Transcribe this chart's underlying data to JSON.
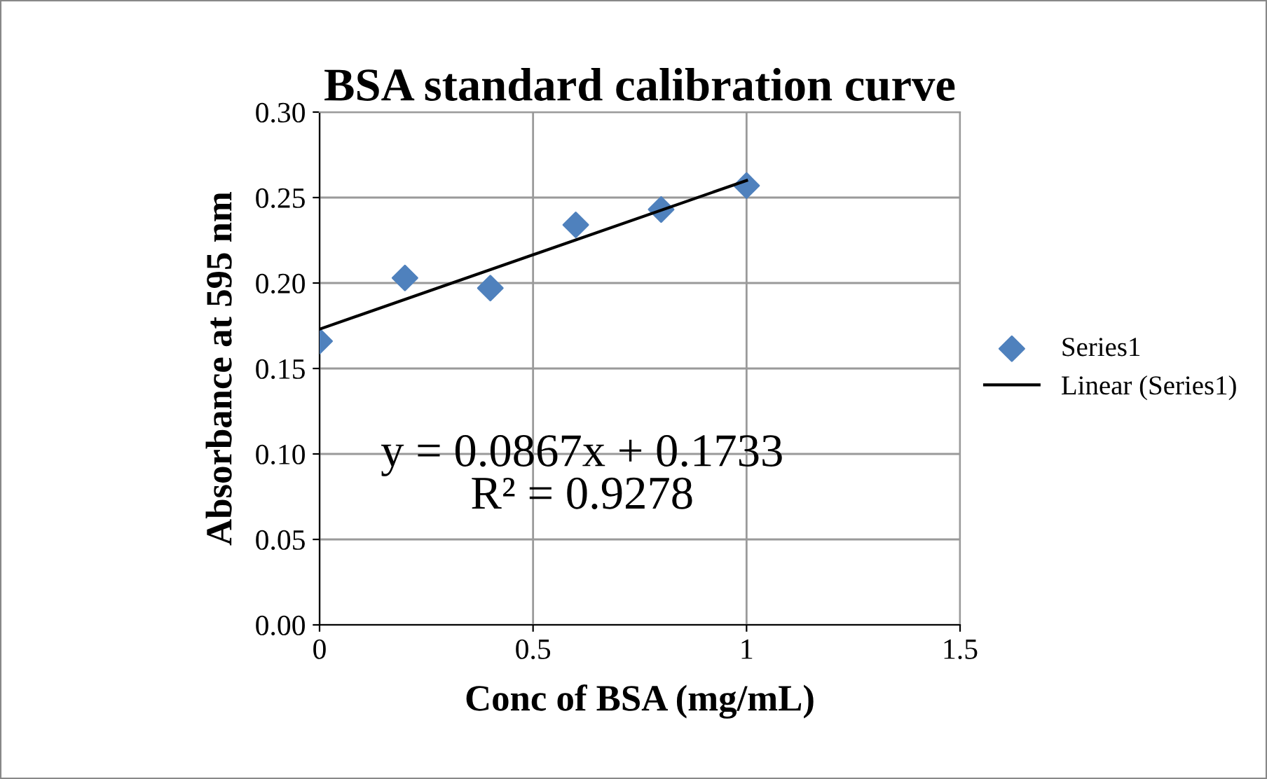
{
  "chart_data": {
    "type": "scatter",
    "title": "BSA standard calibration curve",
    "xlabel": "Conc of BSA (mg/mL)",
    "ylabel": "Absorbance at 595 nm",
    "x": [
      0,
      0.2,
      0.4,
      0.6,
      0.8,
      1
    ],
    "series": [
      {
        "name": "Series1",
        "color": "#4f81bd",
        "marker": "diamond",
        "values": [
          0.166,
          0.203,
          0.197,
          0.234,
          0.243,
          0.257
        ]
      },
      {
        "name": "Linear (Series1)",
        "type": "line",
        "color": "#000000",
        "marker": "none",
        "line_style": "solid",
        "x": [
          0,
          1
        ],
        "values": [
          0.173,
          0.26
        ]
      }
    ],
    "annotations": [
      "y = 0.0867x + 0.1733\nR² = 0.9278"
    ],
    "xlim": [
      0,
      1.5
    ],
    "xticks": [
      0,
      0.5,
      1,
      1.5
    ],
    "ylim": [
      0,
      0.3
    ],
    "yticks": [
      {
        "value": 0,
        "label": "0.00"
      },
      {
        "value": 0.05,
        "label": "0.05"
      },
      {
        "value": 0.1,
        "label": "0.10"
      },
      {
        "value": 0.15,
        "label": "0.15"
      },
      {
        "value": 0.2,
        "label": "0.20"
      },
      {
        "value": 0.25,
        "label": "0.25"
      },
      {
        "value": 0.3,
        "label": "0.30"
      }
    ],
    "grid": true,
    "legend": "right"
  }
}
